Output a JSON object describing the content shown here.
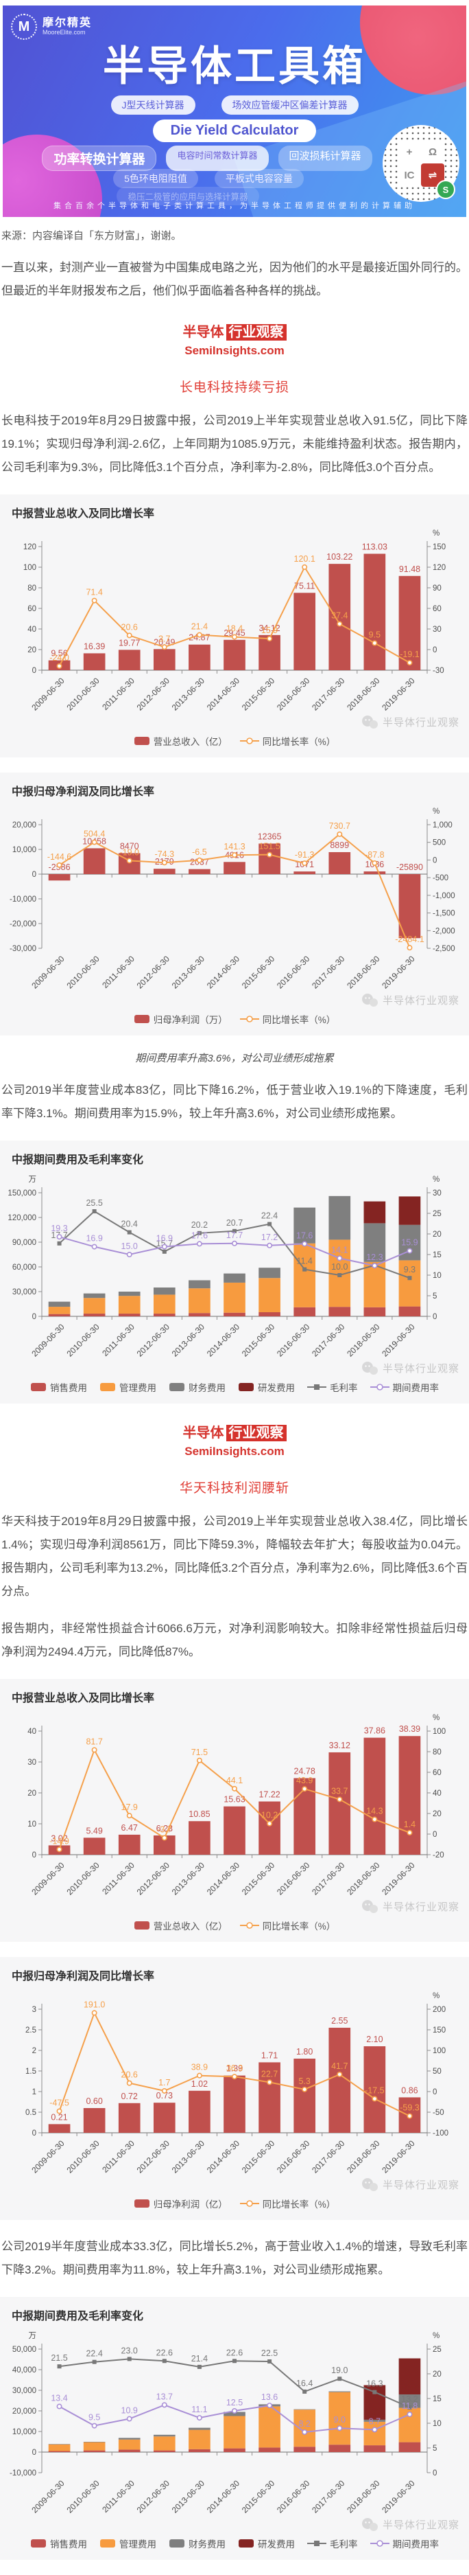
{
  "banner": {
    "logo_letter": "M",
    "logo_name": "摩尔精英",
    "logo_domain": "MooreElite.com",
    "title": "半导体工具箱",
    "pills_row1": [
      "J型天线计算器",
      "场效应管缓冲区偏差计算器"
    ],
    "pill_main": "Die Yield Calculator",
    "pills_row3": [
      "功率转换计算器",
      "电容时间常数计算器",
      "回波损耗计算器"
    ],
    "pills_row4": [
      "5色环电阻阻值",
      "平板式电容容量"
    ],
    "pill_faint": "稳压二极管的应用与选择计算器",
    "tagline": "集合百余个半导体和电子类计算工具，为半导体工程师提供便利的计算辅助",
    "qr_symbols": [
      "+",
      "Ω",
      "IC",
      "⇌"
    ],
    "qr_badge": "S"
  },
  "source_line": "来源：内容编译自「东方财富」，谢谢。",
  "intro": "一直以来，封测产业一直被誉为中国集成电路之光，因为他们的水平是最接近国外同行的。但最近的半年财报发布之后，他们似乎面临着各种各样的挑战。",
  "brand": {
    "name_plain": "半导体",
    "name_boxed": "行业观察",
    "site": "SemiInsights.com"
  },
  "watermark": "半导体行业观察",
  "sections": [
    {
      "heading": "长电科技持续亏损",
      "para1": "长电科技于2019年8月29日披露中报，公司2019上半年实现营业总收入91.5亿，同比下降19.1%；实现归母净利润-2.6亿，上年同期为1085.9万元，未能维持盈利状态。报告期内，公司毛利率为9.3%，同比降低3.1个百分点，净利率为-2.8%，同比降低3.0个百分点。",
      "caption": "期间费用率升高3.6%，对公司业绩形成拖累",
      "para2": "公司2019半年度营业成本83亿，同比下降16.2%，低于营业收入19.1%的下降速度，毛利率下降3.1%。期间费用率为15.9%，较上年升高3.6%，对公司业绩形成拖累。"
    },
    {
      "heading": "华天科技利润腰斩",
      "para1": "华天科技于2019年8月29日披露中报，公司2019上半年实现营业总收入38.4亿，同比增长1.4%；实现归母净利润8561万，同比下降59.3%，降幅较去年扩大；每股收益为0.04元。报告期内，公司毛利率为13.2%，同比降低3.2个百分点，净利率为2.6%，同比降低3.6个百分点。",
      "para2": "报告期内，非经常性损益合计6066.6万元，对净利润影响较大。扣除非经常性损益后归母净利润为2494.4万元，同比降低87%。",
      "para3": "公司2019半年度营业成本33.3亿，同比增长5.2%，高于营业收入1.4%的增速，导致毛利率下降3.2%。期间费用率为11.8%，较上年升高3.1%，对公司业绩形成拖累。"
    }
  ],
  "chart_data": [
    {
      "type": "bar-line",
      "title": "中报营业总收入及同比增长率",
      "categories": [
        "2009-06-30",
        "2010-06-30",
        "2011-06-30",
        "2012-06-30",
        "2013-06-30",
        "2014-06-30",
        "2015-06-30",
        "2016-06-30",
        "2017-06-30",
        "2018-06-30",
        "2019-06-30"
      ],
      "bar": {
        "name": "营业总收入（亿）",
        "color": "#c0504d",
        "labels": [
          "9.56",
          "16.39",
          "19.77",
          "20.49",
          "24.87",
          "29.45",
          "34.12",
          "75.11",
          "103.22",
          "113.03",
          "91.48"
        ]
      },
      "line": {
        "name": "同比增长率（%）",
        "color": "#f5a04b",
        "labels": [
          "-24.0",
          "71.4",
          "20.6",
          "3.7",
          "21.4",
          "18.4",
          "15.9",
          "120.1",
          "37.4",
          "9.5",
          "-19.1"
        ]
      },
      "left_ticks": [
        120,
        100,
        80,
        60,
        40,
        20,
        0
      ],
      "right_ticks": [
        150,
        120,
        90,
        60,
        30,
        0,
        -30
      ],
      "right_unit": "%"
    },
    {
      "type": "bar-line",
      "title": "中报归母净利润及同比增长率",
      "categories": [
        "2009-06-30",
        "2010-06-30",
        "2011-06-30",
        "2012-06-30",
        "2013-06-30",
        "2014-06-30",
        "2015-06-30",
        "2016-06-30",
        "2017-06-30",
        "2018-06-30",
        "2019-06-30"
      ],
      "bar": {
        "name": "归母净利润（万）",
        "color": "#c0504d",
        "labels": [
          "-2586",
          "10458",
          "8470",
          "2179",
          "2037",
          "4916",
          "12365",
          "1071",
          "8899",
          "1086",
          "-25890"
        ]
      },
      "line": {
        "name": "同比增长率（%）",
        "color": "#f5a04b",
        "labels": [
          "-144.6",
          "504.4",
          "-19.0",
          "-74.3",
          "-6.5",
          "141.3",
          "151.5",
          "-91.3",
          "730.7",
          "-87.8",
          "-2484.1"
        ]
      },
      "left_ticks": [
        20000,
        10000,
        0,
        -10000,
        -20000,
        -30000
      ],
      "right_ticks": [
        1000,
        500,
        0,
        -500,
        -1000,
        -1500,
        -2000,
        -2500
      ],
      "right_unit": "%"
    },
    {
      "type": "stacked-bar-line",
      "title": "中报期间费用及毛利率变化",
      "categories": [
        "2009-06-30",
        "2010-06-30",
        "2011-06-30",
        "2012-06-30",
        "2013-06-30",
        "2014-06-30",
        "2015-06-30",
        "2016-06-30",
        "2017-06-30",
        "2018-06-30",
        "2019-06-30"
      ],
      "stacks": [
        {
          "name": "销售费用",
          "color": "#c0504d",
          "values": [
            2800,
            3300,
            3300,
            3300,
            4000,
            4400,
            5000,
            11000,
            11500,
            11000,
            12000
          ]
        },
        {
          "name": "管理费用",
          "color": "#f79b3f",
          "values": [
            8800,
            19000,
            21500,
            23000,
            30000,
            36500,
            41500,
            77500,
            81500,
            55000,
            56000
          ]
        },
        {
          "name": "财务费用",
          "color": "#7f7f7f",
          "values": [
            6200,
            5500,
            5200,
            8700,
            9800,
            11100,
            12500,
            43500,
            53000,
            47000,
            43000
          ]
        },
        {
          "name": "研发费用",
          "color": "#842422",
          "values": [
            0,
            0,
            0,
            0,
            0,
            0,
            0,
            0,
            0,
            26500,
            34500
          ]
        }
      ],
      "lines": [
        {
          "name": "毛利率",
          "color": "#787878",
          "marker": "square",
          "labels": [
            "17.7",
            "25.5",
            "20.4",
            "15.7",
            "20.2",
            "20.7",
            "22.4",
            "11.4",
            "10.0",
            "12.4",
            "9.3"
          ]
        },
        {
          "name": "期间费用率",
          "color": "#a98fd6",
          "marker": "circle",
          "labels": [
            "19.3",
            "16.9",
            "15.0",
            "16.9",
            "17.6",
            "17.7",
            "17.2",
            "17.6",
            "14.1",
            "12.3",
            "15.9"
          ]
        }
      ],
      "left_ticks": [
        150000,
        120000,
        90000,
        60000,
        30000,
        0
      ],
      "right_ticks": [
        30,
        25,
        20,
        15,
        10,
        5,
        0
      ],
      "left_unit": "万",
      "right_unit": "%"
    },
    {
      "type": "bar-line",
      "title": "中报营业总收入及同比增长率",
      "categories": [
        "2009-06-30",
        "2010-06-30",
        "2011-06-30",
        "2012-06-30",
        "2013-06-30",
        "2014-06-30",
        "2015-06-30",
        "2016-06-30",
        "2017-06-30",
        "2018-06-30",
        "2019-06-30"
      ],
      "bar": {
        "name": "营业总收入（亿）",
        "color": "#c0504d",
        "labels": [
          "3.02",
          "5.49",
          "6.47",
          "6.23",
          "10.85",
          "15.63",
          "17.22",
          "24.78",
          "33.12",
          "37.86",
          "38.39"
        ]
      },
      "line": {
        "name": "同比增长率（%）",
        "color": "#f5a04b",
        "labels": [
          "-14.9",
          "81.7",
          "17.9",
          "-3.7",
          "71.5",
          "44.1",
          "10.2",
          "43.9",
          "33.7",
          "14.3",
          "1.4"
        ]
      },
      "left_ticks": [
        40,
        30,
        20,
        10,
        0
      ],
      "right_ticks": [
        100,
        80,
        60,
        40,
        20,
        0,
        -20
      ],
      "right_unit": "%"
    },
    {
      "type": "bar-line",
      "title": "中报归母净利润及同比增长率",
      "categories": [
        "2009-06-30",
        "2010-06-30",
        "2011-06-30",
        "2012-06-30",
        "2013-06-30",
        "2014-06-30",
        "2015-06-30",
        "2016-06-30",
        "2017-06-30",
        "2018-06-30",
        "2019-06-30"
      ],
      "bar": {
        "name": "归母净利润（亿）",
        "color": "#c0504d",
        "labels": [
          "0.21",
          "0.60",
          "0.72",
          "0.73",
          "1.02",
          "1.39",
          "1.71",
          "1.80",
          "2.55",
          "2.10",
          "0.86"
        ]
      },
      "line": {
        "name": "同比增长率（%）",
        "color": "#f5a04b",
        "labels": [
          "-47.5",
          "191.0",
          "20.6",
          "1.7",
          "38.9",
          "36.3",
          "22.7",
          "5.3",
          "41.7",
          "-17.5",
          "-59.3"
        ]
      },
      "left_ticks": [
        3,
        2.5,
        2,
        1.5,
        1,
        0.5,
        0
      ],
      "right_ticks": [
        200,
        150,
        100,
        50,
        0,
        -50,
        -100
      ],
      "right_unit": "%"
    },
    {
      "type": "stacked-bar-line",
      "title": "中报期间费用及毛利率变化",
      "categories": [
        "2009-06-30",
        "2010-06-30",
        "2011-06-30",
        "2012-06-30",
        "2013-06-30",
        "2014-06-30",
        "2015-06-30",
        "2016-06-30",
        "2017-06-30",
        "2018-06-30",
        "2019-06-30"
      ],
      "stacks": [
        {
          "name": "销售费用",
          "color": "#c0504d",
          "values": [
            500,
            800,
            1200,
            800,
            1400,
            1800,
            2200,
            2600,
            3600,
            3300,
            4800
          ]
        },
        {
          "name": "管理费用",
          "color": "#f79b3f",
          "values": [
            3200,
            4000,
            4900,
            6800,
            9400,
            15700,
            20000,
            18000,
            25500,
            11400,
            16700
          ]
        },
        {
          "name": "财务费用",
          "color": "#7f7f7f",
          "values": [
            200,
            200,
            800,
            800,
            1000,
            2000,
            1000,
            200,
            400,
            1000,
            6500
          ]
        },
        {
          "name": "研发费用",
          "color": "#842422",
          "values": [
            0,
            0,
            0,
            0,
            0,
            0,
            0,
            0,
            0,
            16800,
            17500
          ]
        }
      ],
      "lines": [
        {
          "name": "毛利率",
          "color": "#787878",
          "marker": "square",
          "labels": [
            "21.5",
            "22.4",
            "23.0",
            "22.6",
            "21.4",
            "22.6",
            "22.5",
            "16.4",
            "19.0",
            "16.3",
            "13.2"
          ]
        },
        {
          "name": "期间费用率",
          "color": "#a98fd6",
          "marker": "circle",
          "labels": [
            "13.4",
            "9.5",
            "10.9",
            "13.7",
            "11.1",
            "12.5",
            "13.6",
            "8.2",
            "9.0",
            "8.7",
            "11.8"
          ]
        }
      ],
      "left_ticks": [
        50000,
        40000,
        30000,
        20000,
        10000,
        0,
        -10000
      ],
      "right_ticks": [
        25,
        20,
        15,
        10,
        5,
        0
      ],
      "left_unit": "万",
      "right_unit": "%"
    }
  ]
}
